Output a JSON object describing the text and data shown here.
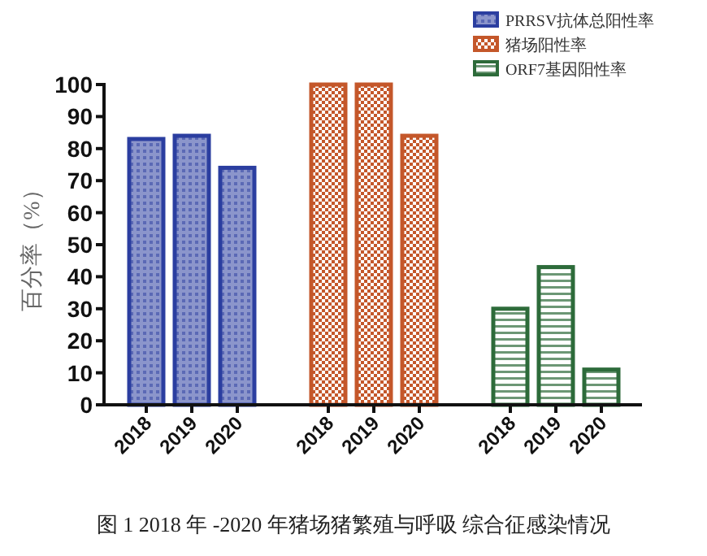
{
  "chart_data": {
    "type": "bar",
    "ylabel": "百分率（%）",
    "categories": [
      "2018",
      "2019",
      "2020",
      null,
      "2018",
      "2019",
      "2020",
      null,
      "2018",
      "2019",
      "2020"
    ],
    "series": [
      {
        "name": "PRRSV抗体总阳性率",
        "color": "#2b3ea0",
        "values": [
          83,
          84,
          74,
          null,
          null,
          null,
          null,
          null,
          null,
          null,
          null
        ]
      },
      {
        "name": "猪场阳性率",
        "color": "#c4572a",
        "values": [
          null,
          null,
          null,
          null,
          100,
          100,
          84,
          null,
          null,
          null,
          null
        ]
      },
      {
        "name": "ORF7基因阳性率",
        "color": "#2d6b3a",
        "values": [
          null,
          null,
          null,
          null,
          null,
          null,
          null,
          null,
          30,
          43,
          11
        ]
      }
    ],
    "ylim": [
      0,
      100
    ],
    "yticks": [
      0,
      10,
      20,
      30,
      40,
      50,
      60,
      70,
      80,
      90,
      100
    ],
    "grid": false,
    "legend": "top right",
    "annotations": [
      "图 1  2018 年 -2020 年猪场猪繁殖与呼吸 综合征感染情况"
    ]
  }
}
